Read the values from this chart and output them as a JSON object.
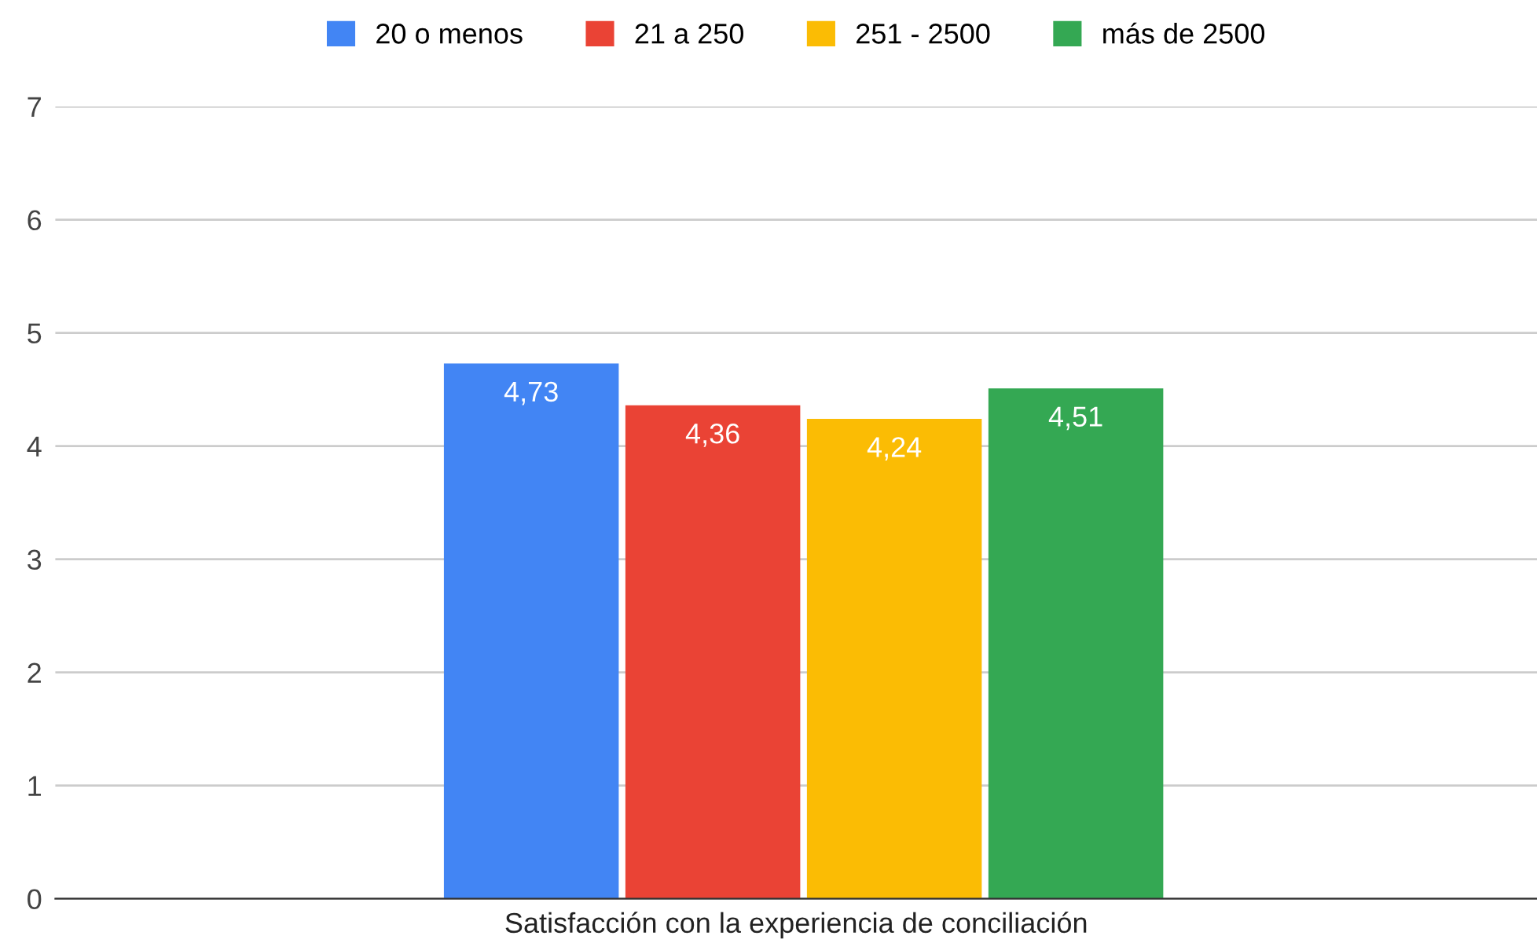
{
  "chart_data": {
    "type": "bar",
    "categories": [
      "Satisfacción con la experiencia de conciliación"
    ],
    "series": [
      {
        "name": "20 o menos",
        "color": "#4285f4",
        "values": [
          4.73
        ],
        "value_labels": [
          "4,73"
        ]
      },
      {
        "name": "21 a 250",
        "color": "#ea4335",
        "values": [
          4.36
        ],
        "value_labels": [
          "4,36"
        ]
      },
      {
        "name": "251 - 2500",
        "color": "#fbbc04",
        "values": [
          4.24
        ],
        "value_labels": [
          "4,24"
        ]
      },
      {
        "name": "más de 2500",
        "color": "#34a853",
        "values": [
          4.51
        ],
        "value_labels": [
          "4,51"
        ]
      }
    ],
    "ylim": [
      0,
      7
    ],
    "yticks": [
      0,
      1,
      2,
      3,
      4,
      5,
      6,
      7
    ],
    "grid": "y",
    "legend": "top"
  }
}
